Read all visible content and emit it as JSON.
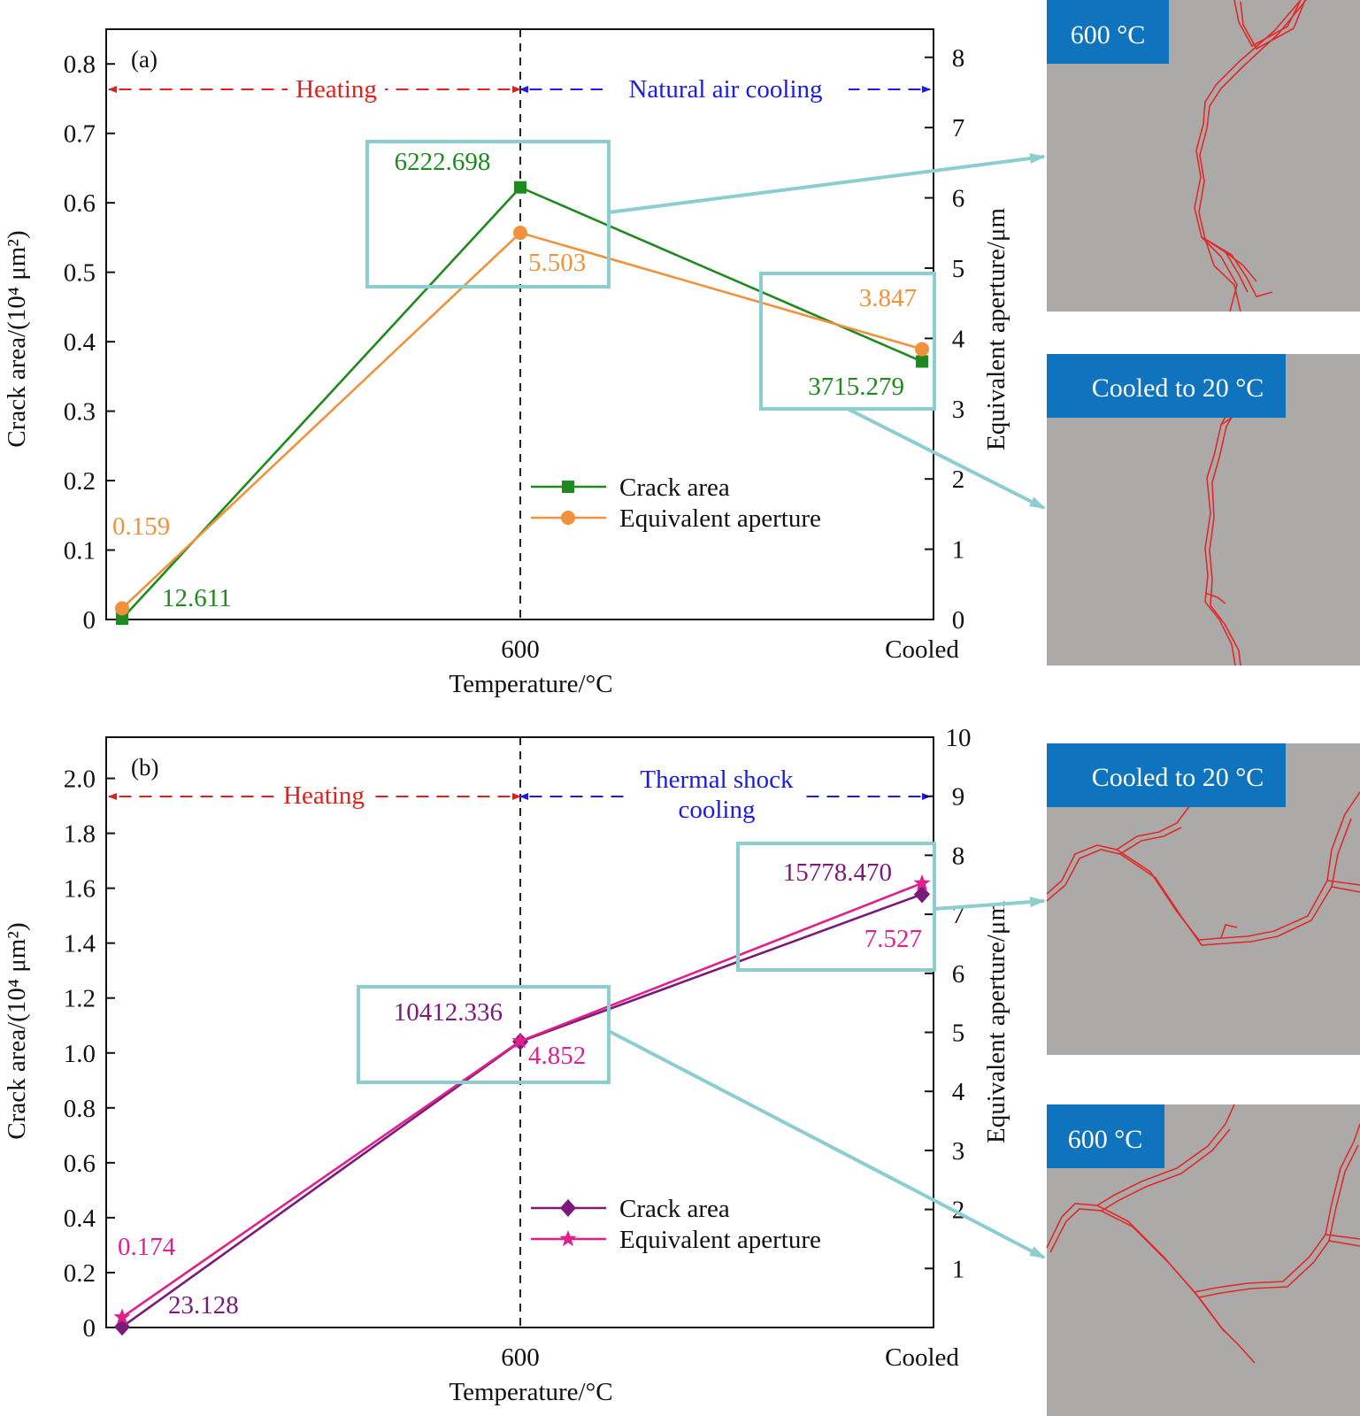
{
  "colors": {
    "green": "#1e8a1e",
    "orange": "#f0923c",
    "purple": "#7b1a7b",
    "magenta": "#e0208c",
    "heating": "#e0201c",
    "cooling": "#1c1ce0",
    "callout": "#8ccdd0",
    "panel_bg": "#aca9a9",
    "panel_title_bg": "#0f73bd",
    "crack": "#e02a2a"
  },
  "chart_data": [
    {
      "type": "line",
      "panel_label": "(a)",
      "categories": [
        "",
        "600",
        "Cooled"
      ],
      "xlabel": "Temperature/°C",
      "ylabel_left": "Crack area/(10⁴ μm²)",
      "ylabel_right": "Equivalent aperture/μm",
      "ylim_left": [
        0,
        0.85
      ],
      "ylim_right": [
        0,
        8.4
      ],
      "yticks_left": [
        "0",
        "0.1",
        "0.2",
        "0.3",
        "0.4",
        "0.5",
        "0.6",
        "0.7",
        "0.8"
      ],
      "yticks_right": [
        "0",
        "1",
        "2",
        "3",
        "4",
        "5",
        "6",
        "7",
        "8"
      ],
      "phases": [
        {
          "text": "Heating",
          "from": 0,
          "to": 1,
          "color_key": "heating"
        },
        {
          "text": "Natural air cooling",
          "from": 1,
          "to": 2,
          "color_key": "cooling"
        }
      ],
      "series": [
        {
          "name": "Crack area",
          "axis": "left",
          "marker": "square",
          "color_key": "green",
          "values": [
            0.0012611,
            0.6222698,
            0.3715279
          ],
          "labels": [
            "12.611",
            "6222.698",
            "3715.279"
          ]
        },
        {
          "name": "Equivalent aperture",
          "axis": "right",
          "marker": "circle",
          "color_key": "orange",
          "values": [
            0.159,
            5.503,
            3.847
          ],
          "labels": [
            "0.159",
            "5.503",
            "3.847"
          ]
        }
      ],
      "legend": "lower-right",
      "callout_panels": [
        {
          "title": "600 °C"
        },
        {
          "title": "Cooled to 20 °C"
        }
      ]
    },
    {
      "type": "line",
      "panel_label": "(b)",
      "categories": [
        "",
        "600",
        "Cooled"
      ],
      "xlabel": "Temperature/°C",
      "ylabel_left": "Crack area/(10⁴ μm²)",
      "ylabel_right": "Equivalent aperture/μm",
      "ylim_left": [
        0,
        2.15
      ],
      "ylim_right": [
        0,
        10
      ],
      "yticks_left": [
        "0",
        "0.2",
        "0.4",
        "0.6",
        "0.8",
        "1.0",
        "1.2",
        "1.4",
        "1.6",
        "1.8",
        "2.0"
      ],
      "yticks_right": [
        "1",
        "2",
        "3",
        "4",
        "5",
        "6",
        "7",
        "8",
        "9",
        "10"
      ],
      "phases": [
        {
          "text": "Heating",
          "from": 0,
          "to": 1,
          "color_key": "heating"
        },
        {
          "text": "Thermal shock cooling",
          "from": 1,
          "to": 2,
          "color_key": "cooling"
        }
      ],
      "series": [
        {
          "name": "Crack area",
          "axis": "left",
          "marker": "diamond",
          "color_key": "purple",
          "values": [
            0.0023128,
            1.0412336,
            1.577847
          ],
          "labels": [
            "23.128",
            "10412.336",
            "15778.470"
          ]
        },
        {
          "name": "Equivalent aperture",
          "axis": "right",
          "marker": "star",
          "color_key": "magenta",
          "values": [
            0.174,
            4.852,
            7.527
          ],
          "labels": [
            "0.174",
            "4.852",
            "7.527"
          ]
        }
      ],
      "legend": "lower-right",
      "callout_panels": [
        {
          "title": "Cooled to 20 °C"
        },
        {
          "title": "600 °C"
        }
      ]
    }
  ]
}
